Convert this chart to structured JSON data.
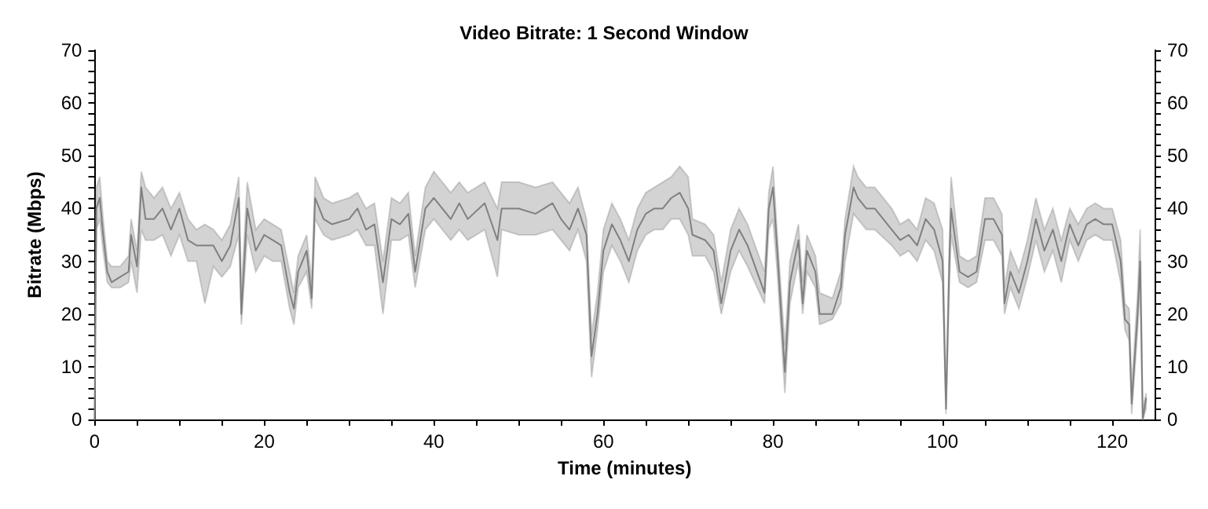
{
  "chart_data": {
    "type": "line",
    "title": "Video Bitrate: 1 Second Window",
    "xlabel": "Time (minutes)",
    "ylabel": "Bitrate (Mbps)",
    "xlim": [
      0,
      125
    ],
    "xticks": [
      0,
      {
        "value": 5,
        "label": null
      },
      {
        "value": 10,
        "label": null
      },
      {
        "value": 15,
        "label": null
      },
      20,
      {
        "value": 25,
        "label": null
      },
      {
        "value": 30,
        "label": null
      },
      {
        "value": 35,
        "label": null
      },
      40,
      {
        "value": 45,
        "label": null
      },
      {
        "value": 50,
        "label": null
      },
      {
        "value": 55,
        "label": null
      },
      60,
      {
        "value": 65,
        "label": null
      },
      {
        "value": 70,
        "label": null
      },
      {
        "value": 75,
        "label": null
      },
      80,
      {
        "value": 85,
        "label": null
      },
      {
        "value": 90,
        "label": null
      },
      {
        "value": 95,
        "label": null
      },
      100,
      {
        "value": 105,
        "label": null
      },
      {
        "value": 110,
        "label": null
      },
      {
        "value": 115,
        "label": null
      },
      120
    ],
    "ylim": [
      0,
      70
    ],
    "yticks": [
      0,
      {
        "value": 2,
        "label": null
      },
      {
        "value": 4,
        "label": null
      },
      {
        "value": 6,
        "label": null
      },
      {
        "value": 8,
        "label": null
      },
      10,
      {
        "value": 12,
        "label": null
      },
      {
        "value": 14,
        "label": null
      },
      {
        "value": 16,
        "label": null
      },
      {
        "value": 18,
        "label": null
      },
      20,
      {
        "value": 22,
        "label": null
      },
      {
        "value": 24,
        "label": null
      },
      {
        "value": 26,
        "label": null
      },
      {
        "value": 28,
        "label": null
      },
      30,
      {
        "value": 32,
        "label": null
      },
      {
        "value": 34,
        "label": null
      },
      {
        "value": 36,
        "label": null
      },
      {
        "value": 38,
        "label": null
      },
      40,
      {
        "value": 42,
        "label": null
      },
      {
        "value": 44,
        "label": null
      },
      {
        "value": 46,
        "label": null
      },
      {
        "value": 48,
        "label": null
      },
      50,
      {
        "value": 52,
        "label": null
      },
      {
        "value": 54,
        "label": null
      },
      {
        "value": 56,
        "label": null
      },
      {
        "value": 58,
        "label": null
      },
      60,
      {
        "value": 62,
        "label": null
      },
      {
        "value": 64,
        "label": null
      },
      {
        "value": 66,
        "label": null
      },
      {
        "value": 68,
        "label": null
      },
      70
    ],
    "y2lim": [
      0,
      70
    ],
    "y2ticks": [
      0,
      {
        "value": 2,
        "label": null
      },
      {
        "value": 4,
        "label": null
      },
      {
        "value": 6,
        "label": null
      },
      {
        "value": 8,
        "label": null
      },
      10,
      {
        "value": 12,
        "label": null
      },
      {
        "value": 14,
        "label": null
      },
      {
        "value": 16,
        "label": null
      },
      {
        "value": 18,
        "label": null
      },
      20,
      {
        "value": 22,
        "label": null
      },
      {
        "value": 24,
        "label": null
      },
      {
        "value": 26,
        "label": null
      },
      {
        "value": 28,
        "label": null
      },
      30,
      {
        "value": 32,
        "label": null
      },
      {
        "value": 34,
        "label": null
      },
      {
        "value": 36,
        "label": null
      },
      {
        "value": 38,
        "label": null
      },
      40,
      {
        "value": 42,
        "label": null
      },
      {
        "value": 44,
        "label": null
      },
      {
        "value": 46,
        "label": null
      },
      {
        "value": 48,
        "label": null
      },
      50,
      {
        "value": 52,
        "label": null
      },
      {
        "value": 54,
        "label": null
      },
      {
        "value": 56,
        "label": null
      },
      {
        "value": 58,
        "label": null
      },
      60,
      {
        "value": 62,
        "label": null
      },
      {
        "value": 64,
        "label": null
      },
      {
        "value": 66,
        "label": null
      },
      {
        "value": 68,
        "label": null
      },
      70
    ],
    "grid": false,
    "marker": "none",
    "line_style": "solid",
    "x": [
      0,
      0.2,
      0.6,
      1,
      1.5,
      2,
      3,
      4,
      4.3,
      5,
      5.5,
      6,
      7,
      8,
      9,
      10,
      11,
      12,
      13,
      14,
      15,
      16,
      17,
      17.3,
      18,
      19,
      20,
      21,
      22,
      23,
      23.5,
      24,
      25,
      25.6,
      26,
      27,
      28,
      30,
      31,
      32,
      33,
      34,
      35,
      36,
      37,
      37.8,
      39,
      40,
      42,
      43,
      44,
      46,
      47.5,
      48,
      50,
      52,
      54,
      55,
      56,
      57,
      58,
      58.6,
      59.3,
      60,
      61,
      62,
      63,
      64,
      65,
      66,
      67,
      68,
      69,
      70,
      70.5,
      72,
      73,
      73.9,
      75,
      76,
      77,
      79,
      79.5,
      80,
      80.5,
      81.4,
      82,
      83,
      83.5,
      84,
      85,
      85.5,
      87,
      88,
      88.5,
      89.5,
      90,
      91,
      92,
      94,
      95,
      96,
      97,
      98,
      99,
      100,
      100.4,
      100.8,
      101,
      102,
      103,
      104,
      105,
      106,
      107,
      107.3,
      108,
      109,
      110,
      111,
      112,
      113,
      114,
      115,
      116,
      117,
      118,
      119,
      120,
      121,
      121.5,
      122,
      122.3,
      123,
      123.3,
      123.6,
      124
    ],
    "series": [
      {
        "color": "#808080",
        "values": [
          0,
          40,
          42,
          35,
          28,
          26,
          27,
          28,
          35,
          29,
          44,
          38,
          38,
          40,
          36,
          40,
          34,
          33,
          33,
          33,
          30,
          33,
          42,
          20,
          40,
          32,
          35,
          34,
          33,
          24,
          21,
          28,
          32,
          23,
          42,
          38,
          37,
          38,
          40,
          36,
          37,
          26,
          38,
          37,
          39,
          28,
          40,
          42,
          38,
          41,
          38,
          41,
          34,
          40,
          40,
          39,
          41,
          38,
          36,
          40,
          35,
          12,
          20,
          32,
          37,
          34,
          30,
          36,
          39,
          40,
          40,
          42,
          43,
          40,
          35,
          34,
          32,
          22,
          32,
          36,
          33,
          24,
          40,
          44,
          32,
          9,
          26,
          34,
          22,
          32,
          28,
          20,
          20,
          25,
          35,
          44,
          42,
          40,
          40,
          36,
          34,
          35,
          33,
          38,
          36,
          30,
          2,
          30,
          40,
          28,
          27,
          28,
          38,
          38,
          35,
          22,
          28,
          24,
          30,
          38,
          32,
          36,
          30,
          37,
          33,
          37,
          38,
          37,
          37,
          30,
          19,
          18,
          3,
          20,
          30,
          0,
          4
        ],
        "lower": [
          0,
          36,
          38,
          32,
          26,
          25,
          25,
          26,
          30,
          24,
          36,
          34,
          34,
          35,
          31,
          35,
          30,
          30,
          22,
          29,
          27,
          29,
          35,
          18,
          35,
          28,
          31,
          30,
          30,
          21,
          18,
          25,
          28,
          21,
          38,
          35,
          34,
          35,
          36,
          33,
          33,
          20,
          34,
          34,
          35,
          25,
          36,
          38,
          34,
          36,
          34,
          36,
          27,
          36,
          35,
          35,
          36,
          34,
          32,
          36,
          30,
          8,
          17,
          28,
          33,
          30,
          26,
          32,
          35,
          36,
          36,
          38,
          38,
          35,
          31,
          31,
          28,
          20,
          28,
          32,
          29,
          22,
          36,
          38,
          28,
          5,
          22,
          30,
          20,
          28,
          25,
          18,
          19,
          22,
          30,
          39,
          38,
          36,
          36,
          33,
          31,
          32,
          30,
          34,
          32,
          26,
          1,
          26,
          35,
          26,
          25,
          26,
          34,
          34,
          31,
          20,
          25,
          21,
          27,
          34,
          28,
          32,
          26,
          34,
          30,
          34,
          35,
          34,
          34,
          26,
          17,
          15,
          1,
          17,
          26,
          0,
          2
        ],
        "upper": [
          2,
          44,
          46,
          38,
          30,
          29,
          29,
          31,
          38,
          32,
          47,
          44,
          42,
          44,
          40,
          43,
          38,
          36,
          37,
          36,
          34,
          37,
          46,
          24,
          45,
          36,
          38,
          37,
          36,
          28,
          24,
          31,
          35,
          26,
          46,
          42,
          41,
          42,
          43,
          40,
          41,
          30,
          42,
          41,
          43,
          31,
          44,
          47,
          43,
          45,
          43,
          45,
          40,
          45,
          45,
          44,
          45,
          43,
          41,
          44,
          38,
          16,
          24,
          36,
          41,
          38,
          34,
          40,
          43,
          44,
          45,
          46,
          48,
          46,
          38,
          37,
          35,
          26,
          36,
          40,
          37,
          28,
          43,
          48,
          35,
          14,
          30,
          37,
          26,
          35,
          31,
          24,
          23,
          28,
          38,
          48,
          46,
          44,
          44,
          40,
          37,
          38,
          36,
          42,
          41,
          36,
          4,
          34,
          46,
          31,
          30,
          31,
          42,
          42,
          39,
          25,
          32,
          28,
          34,
          42,
          36,
          40,
          34,
          40,
          37,
          40,
          41,
          40,
          40,
          34,
          22,
          21,
          6,
          24,
          36,
          2,
          5
        ]
      }
    ]
  }
}
